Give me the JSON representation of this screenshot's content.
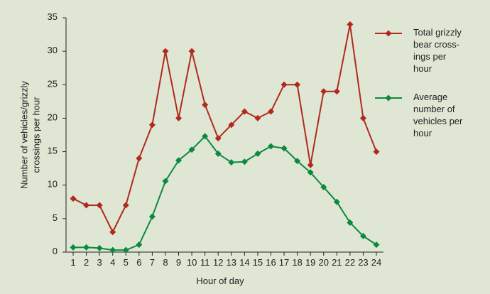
{
  "chart_data": {
    "type": "line",
    "xlabel": "Hour of day",
    "ylabel": "Number of vehicles/grizzly\ncrossings per hour",
    "categories": [
      "1",
      "2",
      "3",
      "4",
      "5",
      "6",
      "7",
      "8",
      "9",
      "10",
      "11",
      "12",
      "13",
      "14",
      "15",
      "16",
      "17",
      "18",
      "19",
      "20",
      "21",
      "22",
      "23",
      "24"
    ],
    "series": [
      {
        "name": "Total grizzly\nbear cross-\nings per\nhour",
        "color": "#b02a1e",
        "values": [
          8,
          7,
          7,
          3,
          7,
          14,
          19,
          30,
          20,
          30,
          22,
          17,
          19,
          21,
          20,
          21,
          25,
          25,
          13,
          24,
          24,
          34,
          20,
          15
        ]
      },
      {
        "name": "Average\nnumber of\nvehicles per\nhour",
        "color": "#0b8a3e",
        "values": [
          0.7,
          0.7,
          0.6,
          0.3,
          0.3,
          1.1,
          5.3,
          10.6,
          13.7,
          15.3,
          17.3,
          14.7,
          13.4,
          13.5,
          14.7,
          15.8,
          15.5,
          13.6,
          11.9,
          9.7,
          7.5,
          4.4,
          2.4,
          1.1
        ]
      }
    ],
    "ylim": [
      0,
      35
    ],
    "yticks": [
      0,
      5,
      10,
      15,
      20,
      25,
      30,
      35
    ],
    "grid": false,
    "legend": "right"
  }
}
